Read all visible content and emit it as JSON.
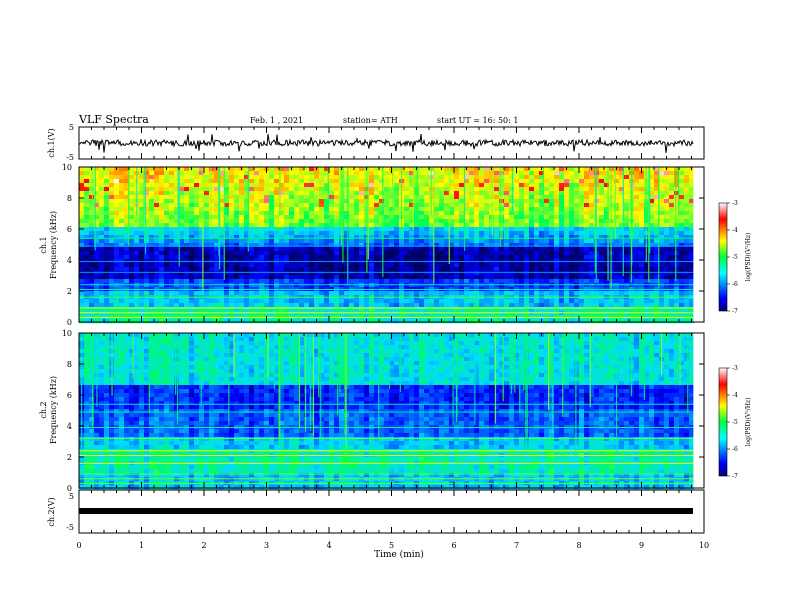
{
  "header": {
    "title": "VLF Spectra",
    "date": "Feb. 1  , 2021",
    "station": "station= ATH",
    "start": "start  UT  =   16: 50: 1"
  },
  "chart_data": {
    "type": "heatmap",
    "x_label": "Time  (min)",
    "x_range": [
      0,
      10
    ],
    "x_ticks": [
      "0",
      "1",
      "2",
      "3",
      "4",
      "5",
      "6",
      "7",
      "8",
      "9",
      "10"
    ],
    "panels": [
      {
        "id": "ch1-waveform",
        "type": "line",
        "ylabel": "ch.1(V)",
        "ylim": [
          -5,
          5
        ],
        "y_ticks": [
          "5",
          "-5"
        ]
      },
      {
        "id": "ch1-spectrogram",
        "type": "heatmap",
        "ylabel_line1": "ch.1",
        "ylabel_line2": "Frequency  (kHz)",
        "ylim": [
          0,
          10
        ],
        "y_ticks": [
          "0",
          "2",
          "4",
          "6",
          "8",
          "10"
        ],
        "colorbar": {
          "label": "log(PSD)(V²/Hz)",
          "range": [
            -7,
            -3
          ],
          "ticks": [
            "-3",
            "-4",
            "-5",
            "-6",
            "-7"
          ]
        }
      },
      {
        "id": "ch2-spectrogram",
        "type": "heatmap",
        "ylabel_line1": "ch.2",
        "ylabel_line2": "Frequency  (kHz)",
        "ylim": [
          0,
          10
        ],
        "y_ticks": [
          "0",
          "2",
          "4",
          "6",
          "8",
          "10"
        ],
        "colorbar": {
          "label": "log(PSD)(V²/Hz)",
          "range": [
            -7,
            -3
          ],
          "ticks": [
            "-3",
            "-4",
            "-5",
            "-6",
            "-7"
          ]
        }
      },
      {
        "id": "ch2-waveform",
        "type": "line",
        "ylabel": "ch.2(V)",
        "ylim": [
          -5,
          5
        ],
        "y_ticks": [
          "5",
          "-5"
        ]
      }
    ],
    "data_end_min": 9.83
  },
  "colors": {
    "frame": "#000000",
    "background": "#ffffff"
  }
}
